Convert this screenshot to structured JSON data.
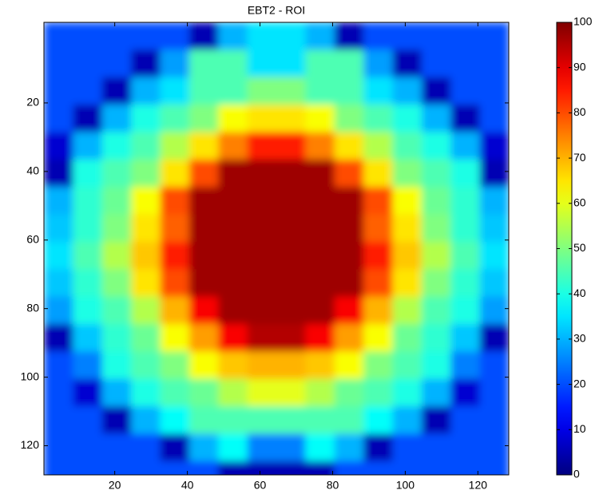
{
  "chart_data": {
    "type": "heatmap",
    "title": "EBT2 - ROI",
    "x": [
      4.5,
      12.5,
      20.5,
      28.5,
      36.5,
      44.5,
      52.5,
      60.5,
      68.5,
      76.5,
      84.5,
      92.5,
      100.5,
      108.5,
      116.5,
      124.5
    ],
    "y": [
      0.5,
      8.5,
      16.5,
      24.5,
      32.5,
      40.5,
      48.5,
      56.5,
      64.5,
      72.5,
      80.5,
      88.5,
      96.5,
      104.5,
      112.5,
      120.5,
      128.5
    ],
    "z": [
      [
        20,
        20,
        20,
        20,
        20,
        5,
        30,
        35,
        35,
        30,
        5,
        20,
        20,
        20,
        20,
        20
      ],
      [
        20,
        20,
        20,
        5,
        28,
        45,
        45,
        35,
        35,
        45,
        45,
        28,
        5,
        20,
        20,
        20
      ],
      [
        20,
        20,
        5,
        30,
        35,
        45,
        45,
        50,
        50,
        45,
        45,
        35,
        30,
        5,
        20,
        20
      ],
      [
        20,
        5,
        30,
        40,
        45,
        50,
        62,
        65,
        65,
        62,
        50,
        45,
        40,
        30,
        5,
        20
      ],
      [
        8,
        30,
        40,
        45,
        55,
        65,
        75,
        85,
        85,
        75,
        65,
        55,
        45,
        40,
        30,
        8
      ],
      [
        5,
        40,
        45,
        50,
        65,
        80,
        97,
        97,
        97,
        97,
        80,
        65,
        50,
        45,
        40,
        5
      ],
      [
        30,
        42,
        48,
        62,
        80,
        97,
        97,
        97,
        97,
        97,
        97,
        80,
        62,
        48,
        42,
        30
      ],
      [
        32,
        42,
        50,
        65,
        78,
        97,
        97,
        97,
        97,
        97,
        97,
        78,
        65,
        50,
        42,
        32
      ],
      [
        35,
        45,
        55,
        68,
        85,
        97,
        97,
        97,
        97,
        97,
        97,
        85,
        68,
        55,
        45,
        35
      ],
      [
        32,
        42,
        50,
        65,
        80,
        97,
        97,
        97,
        97,
        97,
        97,
        80,
        65,
        50,
        42,
        32
      ],
      [
        28,
        40,
        45,
        55,
        70,
        88,
        97,
        97,
        97,
        97,
        88,
        70,
        55,
        45,
        40,
        28
      ],
      [
        5,
        32,
        42,
        48,
        62,
        72,
        88,
        95,
        95,
        88,
        72,
        62,
        48,
        42,
        32,
        5
      ],
      [
        20,
        25,
        40,
        45,
        50,
        62,
        68,
        70,
        70,
        68,
        62,
        50,
        45,
        40,
        25,
        20
      ],
      [
        20,
        8,
        30,
        40,
        45,
        48,
        55,
        60,
        60,
        55,
        48,
        45,
        40,
        30,
        8,
        20
      ],
      [
        20,
        20,
        5,
        30,
        38,
        45,
        45,
        45,
        45,
        45,
        45,
        38,
        30,
        5,
        20,
        20
      ],
      [
        20,
        20,
        20,
        20,
        5,
        30,
        38,
        25,
        25,
        38,
        30,
        5,
        20,
        20,
        20,
        20
      ],
      [
        20,
        20,
        20,
        20,
        20,
        20,
        5,
        5,
        5,
        5,
        20,
        20,
        20,
        20,
        20,
        20
      ]
    ],
    "xlim": [
      0.5,
      128.5
    ],
    "xticks": [
      20,
      40,
      60,
      80,
      100,
      120
    ],
    "ylim": [
      128.5,
      -3.5
    ],
    "yticks": [
      20,
      40,
      60,
      80,
      100,
      120
    ],
    "colormap": "jet",
    "colorbar": {
      "lim": [
        0,
        100
      ],
      "ticks": [
        0,
        10,
        20,
        30,
        40,
        50,
        60,
        70,
        80,
        90,
        100
      ]
    }
  }
}
